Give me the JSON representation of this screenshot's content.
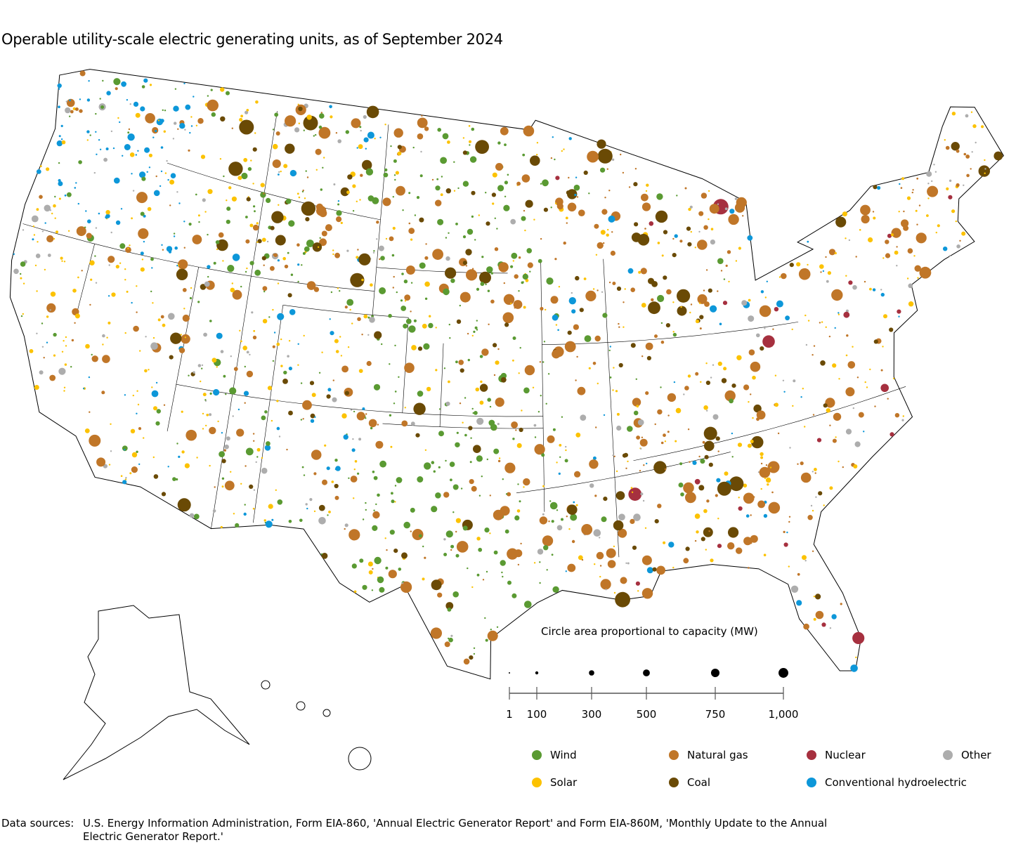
{
  "title": "Operable utility-scale electric generating units, as of September 2024",
  "chart_data": {
    "type": "map-bubble",
    "title": "Operable utility-scale electric generating units, as of September 2024",
    "size_legend": {
      "title": "Circle area proportional to capacity (MW)",
      "values": [
        1,
        100,
        300,
        500,
        750,
        1000
      ],
      "labels": [
        "1",
        "100",
        "300",
        "500",
        "750",
        "1,000"
      ]
    },
    "categories": [
      {
        "name": "Wind",
        "color": "#5a9a32"
      },
      {
        "name": "Natural gas",
        "color": "#c07628"
      },
      {
        "name": "Nuclear",
        "color": "#a6303f"
      },
      {
        "name": "Other",
        "color": "#adadad"
      },
      {
        "name": "Solar",
        "color": "#fcc200"
      },
      {
        "name": "Coal",
        "color": "#6a4a05"
      },
      {
        "name": "Conventional hydroelectric",
        "color": "#0d97d9"
      }
    ]
  },
  "source": {
    "label": "Data sources:",
    "text": "U.S. Energy Information Administration, Form EIA-860, 'Annual Electric Generator Report' and Form EIA-860M, 'Monthly Update to the Annual Electric Generator Report.'"
  }
}
